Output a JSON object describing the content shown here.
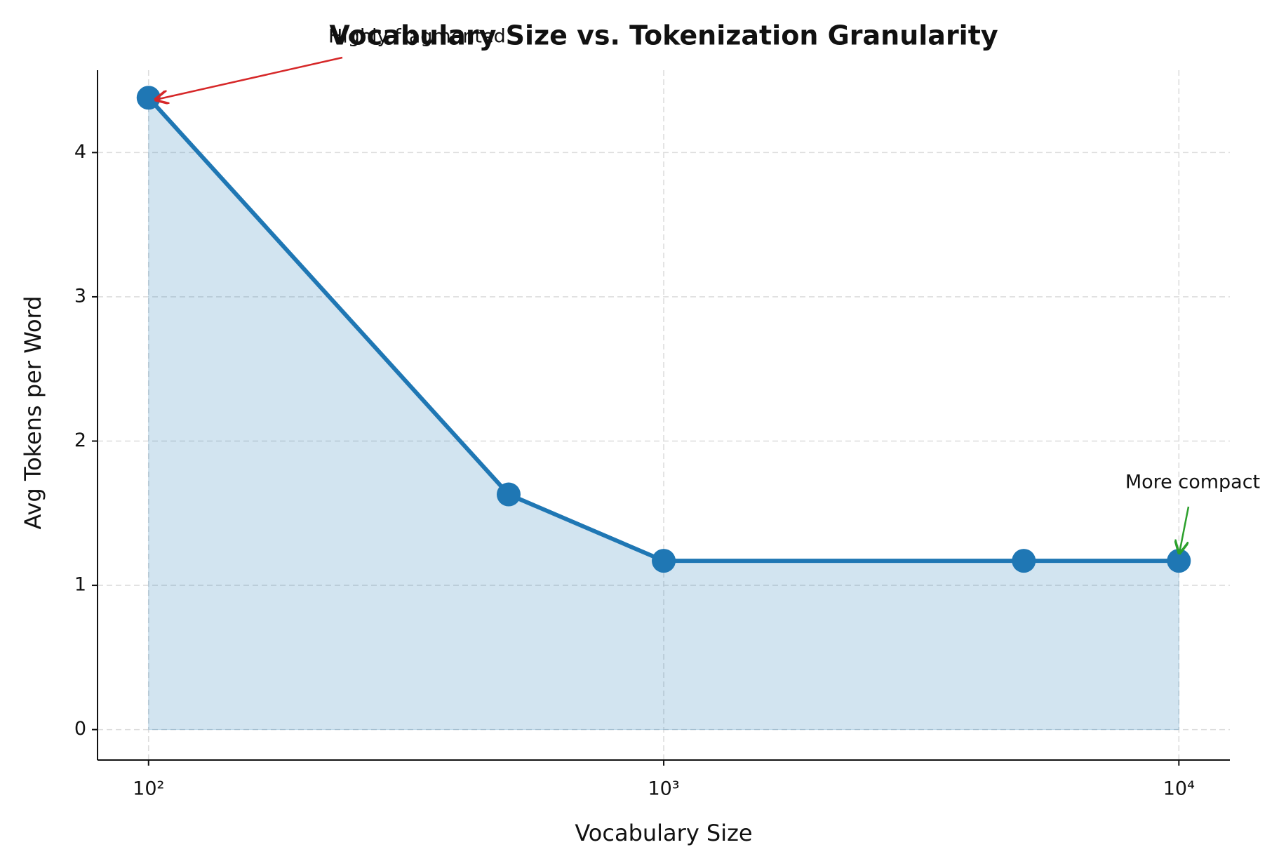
{
  "chart_data": {
    "type": "line",
    "title": "Vocabulary Size vs. Tokenization Granularity",
    "x_label": "Vocabulary Size",
    "y_label": "Avg Tokens per Word",
    "x": [
      100,
      500,
      1000,
      5000,
      10000
    ],
    "series": [
      {
        "name": "Avg Tokens per Word",
        "color": "#1f77b4",
        "values": [
          4.38,
          1.63,
          1.17,
          1.17,
          1.17
        ]
      }
    ],
    "x_log": true,
    "fill": true,
    "grid": true,
    "xlim": [
      79.6,
      12560
    ],
    "xticks": [
      {
        "value": 100,
        "label": "10²"
      },
      {
        "value": 1000,
        "label": "10³"
      },
      {
        "value": 10000,
        "label": "10⁴"
      }
    ],
    "ylim": [
      -0.211,
      4.571
    ],
    "yticks": [
      0,
      1,
      2,
      3,
      4
    ],
    "annotations": [
      {
        "text": "Highly fragmented",
        "color": "#d62728"
      },
      {
        "text": "More compact",
        "color": "#2ca02c"
      }
    ]
  }
}
